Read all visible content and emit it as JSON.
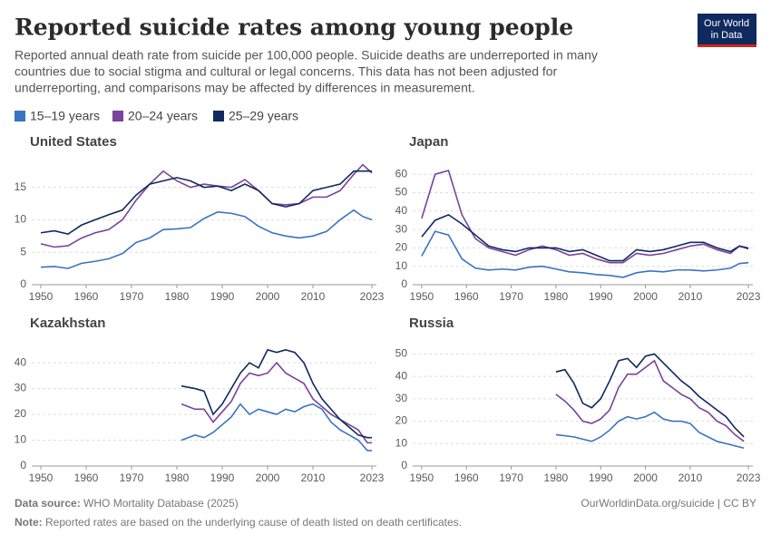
{
  "header": {
    "title": "Reported suicide rates among young people",
    "subtitle_lines": [
      "Reported annual death rate from suicide per 100,000 people. Suicide deaths are underreported in many",
      "countries due to social stigma and cultural or legal concerns. This data has not been adjusted for",
      "underreporting, and comparisons may be affected by differences in measurement."
    ],
    "logo": [
      "Our World",
      "in Data"
    ]
  },
  "footer": {
    "source_label": "Data source:",
    "source": "WHO Mortality Database (2025)",
    "url": "OurWorldinData.org/suicide | CC BY",
    "note_label": "Note:",
    "note": "Reported rates are based on the underlying cause of death listed on death certificates."
  },
  "chart_data": [
    {
      "type": "line",
      "title": "United States",
      "x": [
        1950,
        1953,
        1956,
        1959,
        1962,
        1965,
        1968,
        1971,
        1974,
        1977,
        1980,
        1983,
        1986,
        1989,
        1992,
        1995,
        1998,
        2001,
        2004,
        2007,
        2010,
        2013,
        2016,
        2019,
        2021,
        2023
      ],
      "xlim": [
        1948,
        2024
      ],
      "xticks": [
        1950,
        1960,
        1970,
        1980,
        1990,
        2000,
        2010,
        2023
      ],
      "ylim": [
        0,
        19
      ],
      "yticks": [
        0,
        5,
        10,
        15
      ],
      "grid": true,
      "series": [
        {
          "name": "15–19 years",
          "color": "#3a73c1",
          "values": [
            2.7,
            2.8,
            2.5,
            3.3,
            3.6,
            4.0,
            4.8,
            6.5,
            7.2,
            8.5,
            8.6,
            8.8,
            10.2,
            11.2,
            11.0,
            10.5,
            9.0,
            8.0,
            7.5,
            7.2,
            7.5,
            8.2,
            10.0,
            11.5,
            10.5,
            10.0
          ]
        },
        {
          "name": "20–24 years",
          "color": "#7a429a",
          "values": [
            6.3,
            5.8,
            6.0,
            7.2,
            8.0,
            8.5,
            10.0,
            13.0,
            15.5,
            17.5,
            16.0,
            15.0,
            15.5,
            15.2,
            15.0,
            16.2,
            14.5,
            12.5,
            12.3,
            12.5,
            13.5,
            13.5,
            14.5,
            17.0,
            18.5,
            17.2
          ]
        },
        {
          "name": "25–29 years",
          "color": "#0f2a5e",
          "values": [
            8.0,
            8.3,
            7.8,
            9.2,
            10.0,
            10.8,
            11.5,
            13.8,
            15.5,
            16.0,
            16.5,
            16.0,
            15.0,
            15.2,
            14.5,
            15.5,
            14.5,
            12.5,
            12.0,
            12.5,
            14.5,
            15.0,
            15.5,
            17.5,
            17.5,
            17.5
          ]
        }
      ]
    },
    {
      "type": "line",
      "title": "Japan",
      "x": [
        1950,
        1953,
        1956,
        1959,
        1962,
        1965,
        1968,
        1971,
        1974,
        1977,
        1980,
        1983,
        1986,
        1989,
        1992,
        1995,
        1998,
        2001,
        2004,
        2007,
        2010,
        2013,
        2016,
        2019,
        2021,
        2023
      ],
      "xlim": [
        1948,
        2024
      ],
      "xticks": [
        1950,
        1960,
        1970,
        1980,
        1990,
        2000,
        2010,
        2023
      ],
      "ylim": [
        0,
        67
      ],
      "yticks": [
        0,
        10,
        20,
        30,
        40,
        50,
        60
      ],
      "grid": true,
      "series": [
        {
          "name": "15–19 years",
          "color": "#3a73c1",
          "values": [
            15.5,
            29,
            27,
            14,
            9,
            8,
            8.5,
            8,
            9.5,
            10,
            8.5,
            7,
            6.5,
            5.5,
            5,
            4,
            6.5,
            7.5,
            7,
            8,
            8,
            7.5,
            8,
            9,
            11.5,
            12
          ]
        },
        {
          "name": "20–24 years",
          "color": "#7a429a",
          "values": [
            36,
            60,
            62,
            38,
            25,
            20,
            18,
            16,
            19,
            21,
            19,
            16,
            17,
            14,
            12,
            12,
            17,
            16,
            17,
            19,
            21,
            22,
            19,
            17,
            21,
            20
          ]
        },
        {
          "name": "25–29 years",
          "color": "#0f2a5e",
          "values": [
            26,
            35,
            38,
            33,
            27,
            21,
            19,
            18,
            20,
            20,
            20,
            18,
            19,
            16,
            13,
            13,
            19,
            18,
            19,
            21,
            23,
            23,
            20,
            18,
            21,
            19.5
          ]
        }
      ]
    },
    {
      "type": "line",
      "title": "Kazakhstan",
      "x": [
        1981,
        1984,
        1986,
        1988,
        1990,
        1992,
        1994,
        1996,
        1998,
        2000,
        2002,
        2004,
        2006,
        2008,
        2010,
        2012,
        2014,
        2016,
        2018,
        2020,
        2022,
        2023
      ],
      "xlim": [
        1948,
        2024
      ],
      "xticks": [
        1950,
        1960,
        1970,
        1980,
        1990,
        2000,
        2010,
        2023
      ],
      "ylim": [
        0,
        46
      ],
      "yticks": [
        0,
        10,
        20,
        30,
        40
      ],
      "grid": true,
      "series": [
        {
          "name": "15–19 years",
          "color": "#3a73c1",
          "values": [
            10,
            12,
            11,
            13,
            16,
            19,
            24,
            20,
            22,
            21,
            20,
            22,
            21,
            23,
            24,
            22,
            17,
            14,
            12,
            10,
            6,
            6
          ]
        },
        {
          "name": "20–24 years",
          "color": "#7a429a",
          "values": [
            24,
            22,
            22,
            17,
            21,
            25,
            32,
            36,
            35,
            36,
            40,
            36,
            34,
            32,
            26,
            23,
            20,
            18,
            16,
            14,
            9,
            9
          ]
        },
        {
          "name": "25–29 years",
          "color": "#0f2a5e",
          "values": [
            31,
            30,
            29,
            20,
            24,
            30,
            36,
            40,
            38,
            45,
            44,
            45,
            44,
            40,
            32,
            26,
            22,
            18,
            15,
            12,
            11,
            11
          ]
        }
      ]
    },
    {
      "type": "line",
      "title": "Russia",
      "x": [
        1980,
        1982,
        1984,
        1986,
        1988,
        1990,
        1992,
        1994,
        1996,
        1998,
        2000,
        2002,
        2004,
        2006,
        2008,
        2010,
        2012,
        2014,
        2016,
        2018,
        2020,
        2022
      ],
      "xlim": [
        1948,
        2024
      ],
      "xticks": [
        1950,
        1960,
        1970,
        1980,
        1990,
        2000,
        2010,
        2023
      ],
      "ylim": [
        0,
        53
      ],
      "yticks": [
        0,
        10,
        20,
        30,
        40,
        50
      ],
      "grid": true,
      "series": [
        {
          "name": "15–19 years",
          "color": "#3a73c1",
          "values": [
            14,
            13.5,
            13,
            12,
            11,
            13,
            16,
            20,
            22,
            21,
            22,
            24,
            21,
            20,
            20,
            19,
            15,
            13,
            11,
            10,
            9,
            8
          ]
        },
        {
          "name": "20–24 years",
          "color": "#7a429a",
          "values": [
            32,
            29,
            25,
            20,
            19,
            21,
            25,
            35,
            41,
            41,
            44,
            47,
            38,
            35,
            32,
            30,
            26,
            24,
            20,
            18,
            14,
            11
          ]
        },
        {
          "name": "25–29 years",
          "color": "#0f2a5e",
          "values": [
            42,
            43,
            37,
            28,
            26,
            30,
            38,
            47,
            48,
            44,
            49,
            50,
            46,
            42,
            38,
            35,
            31,
            28,
            25,
            22,
            17,
            13
          ]
        }
      ]
    }
  ]
}
